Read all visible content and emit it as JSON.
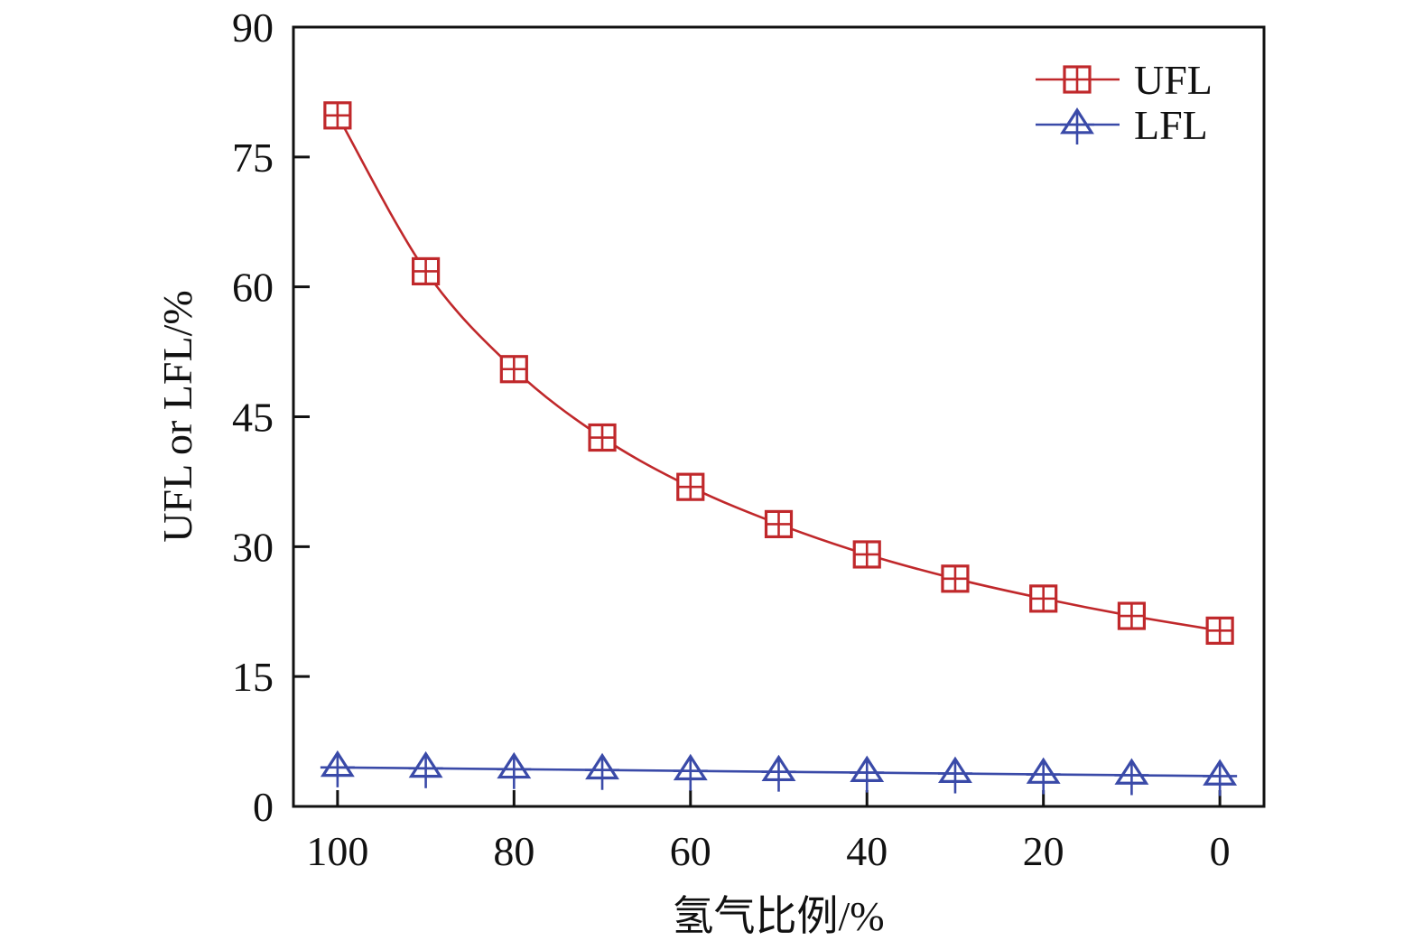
{
  "chart_data": {
    "type": "line",
    "title": "",
    "xlabel": "氢气比例/%",
    "ylabel": "UFL or LFL/%",
    "x": [
      100,
      90,
      80,
      70,
      60,
      50,
      40,
      30,
      20,
      10,
      0
    ],
    "xlim": [
      105,
      -5
    ],
    "x_reversed": true,
    "xticks": [
      100,
      80,
      60,
      40,
      20,
      0
    ],
    "ylim": [
      0,
      90
    ],
    "yticks": [
      0,
      15,
      30,
      45,
      60,
      75,
      90
    ],
    "grid": false,
    "legend_position": "top-right",
    "series": [
      {
        "name": "UFL",
        "color": "#c0282b",
        "marker": "square-cross",
        "values": [
          79.8,
          61.8,
          50.5,
          42.6,
          36.9,
          32.6,
          29.1,
          26.3,
          24.0,
          22.0,
          20.3
        ]
      },
      {
        "name": "LFL",
        "color": "#3a4aa8",
        "marker": "triangle-cross",
        "values": [
          4.5,
          4.4,
          4.3,
          4.2,
          4.1,
          4.0,
          3.9,
          3.8,
          3.7,
          3.6,
          3.5
        ]
      }
    ]
  }
}
